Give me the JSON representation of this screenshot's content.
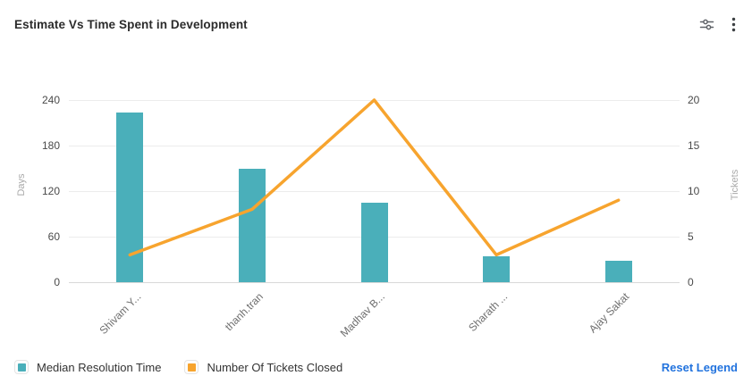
{
  "header": {
    "title": "Estimate Vs Time Spent in Development",
    "actions": {
      "filters_icon": "sliders-icon",
      "menu_icon": "kebab-menu-icon"
    }
  },
  "chart_data": {
    "type": "bar",
    "title": "Estimate Vs Time Spent in Development",
    "categories": [
      "Shivam Y...",
      "thanh.tran",
      "Madhav B...",
      "Sharath ...",
      "Ajay Sakat"
    ],
    "series": [
      {
        "name": "Median Resolution Time",
        "type": "bar",
        "axis": "left",
        "color": "#4AAFBA",
        "values": [
          224,
          150,
          105,
          34,
          28
        ]
      },
      {
        "name": "Number Of Tickets Closed",
        "type": "line",
        "axis": "right",
        "color": "#F7A42E",
        "values": [
          3,
          8,
          20,
          3,
          9
        ]
      }
    ],
    "left_axis": {
      "label": "Days",
      "range": [
        0,
        240
      ],
      "ticks": [
        0,
        60,
        120,
        180,
        240
      ]
    },
    "right_axis": {
      "label": "Tickets",
      "range": [
        0,
        20
      ],
      "ticks": [
        0,
        5,
        10,
        15,
        20
      ]
    },
    "grid": true,
    "legend_position": "bottom"
  },
  "legend": {
    "items": [
      {
        "label": "Median Resolution Time",
        "color": "#4AAFBA"
      },
      {
        "label": "Number Of Tickets Closed",
        "color": "#F7A42E"
      }
    ],
    "reset_label": "Reset Legend"
  },
  "colors": {
    "link": "#2273DE",
    "grid": "#ececec",
    "axis_line": "#d8d8d8"
  }
}
